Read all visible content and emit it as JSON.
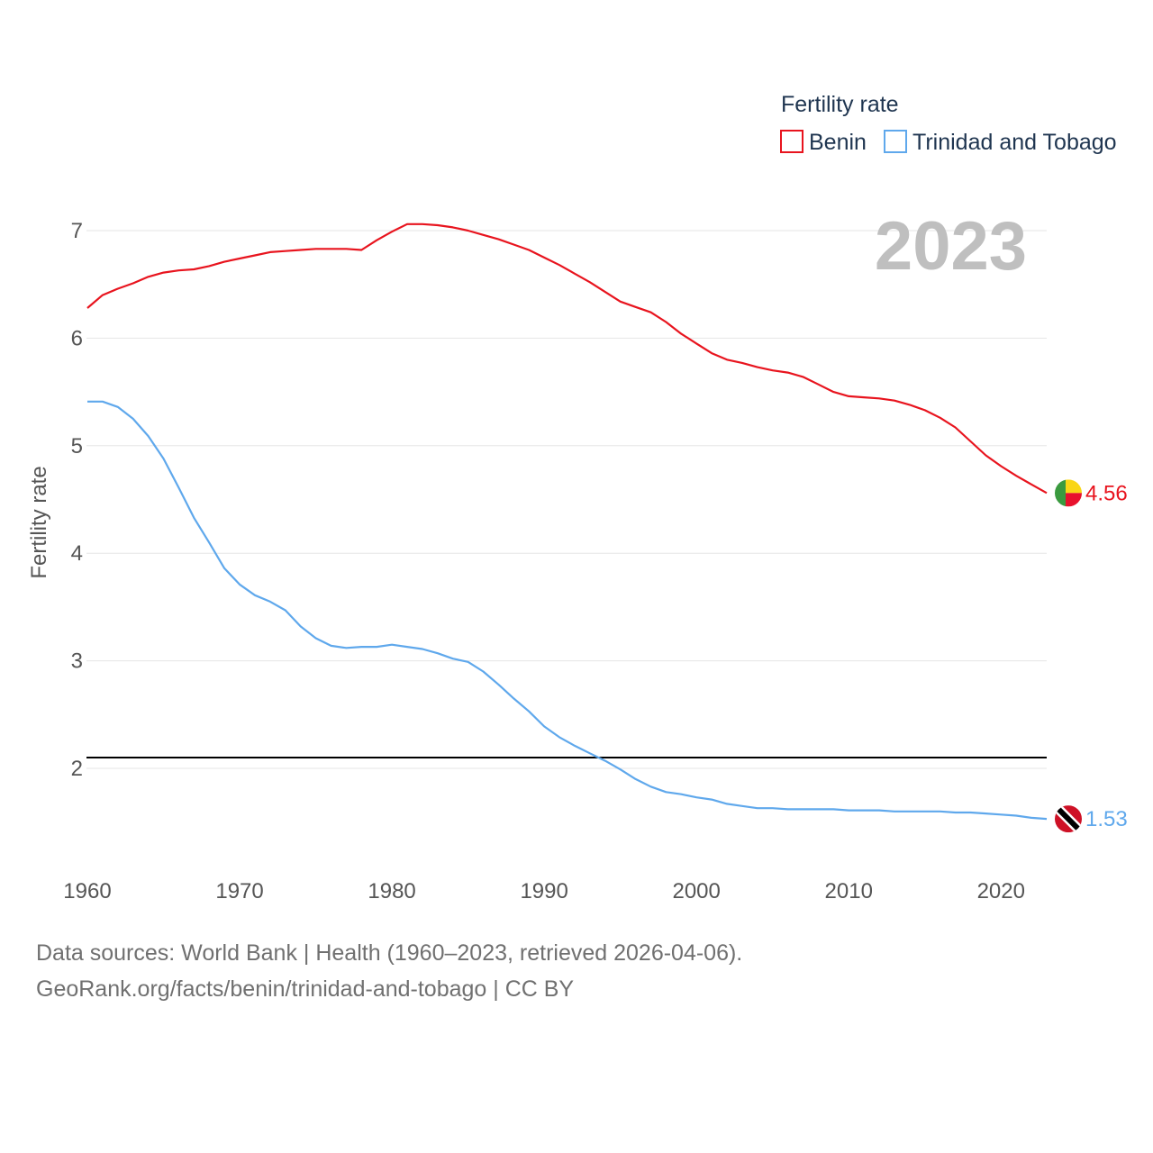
{
  "chart_data": {
    "type": "line",
    "title": "",
    "legend": {
      "title": "Fertility rate",
      "position": "top-right"
    },
    "ylabel": "Fertility rate",
    "xlabel": "",
    "xlim": [
      1960,
      2023
    ],
    "ylim": [
      1.1,
      7.3
    ],
    "x_ticks": [
      1960,
      1970,
      1980,
      1990,
      2000,
      2010,
      2020
    ],
    "y_ticks": [
      2,
      3,
      4,
      5,
      6,
      7
    ],
    "year_label": "2023",
    "reference_line": {
      "value": 2.1,
      "color": "#000000"
    },
    "x": [
      1960,
      1961,
      1962,
      1963,
      1964,
      1965,
      1966,
      1967,
      1968,
      1969,
      1970,
      1971,
      1972,
      1973,
      1974,
      1975,
      1976,
      1977,
      1978,
      1979,
      1980,
      1981,
      1982,
      1983,
      1984,
      1985,
      1986,
      1987,
      1988,
      1989,
      1990,
      1991,
      1992,
      1993,
      1994,
      1995,
      1996,
      1997,
      1998,
      1999,
      2000,
      2001,
      2002,
      2003,
      2004,
      2005,
      2006,
      2007,
      2008,
      2009,
      2010,
      2011,
      2012,
      2013,
      2014,
      2015,
      2016,
      2017,
      2018,
      2019,
      2020,
      2021,
      2022,
      2023
    ],
    "series": [
      {
        "name": "Benin",
        "color": "#e8141e",
        "end_label": "4.56",
        "values": [
          6.28,
          6.4,
          6.46,
          6.51,
          6.57,
          6.61,
          6.63,
          6.64,
          6.67,
          6.71,
          6.74,
          6.77,
          6.8,
          6.81,
          6.82,
          6.83,
          6.83,
          6.83,
          6.82,
          6.91,
          6.99,
          7.06,
          7.06,
          7.05,
          7.03,
          7.0,
          6.96,
          6.92,
          6.87,
          6.82,
          6.75,
          6.68,
          6.6,
          6.52,
          6.43,
          6.34,
          6.29,
          6.24,
          6.15,
          6.04,
          5.95,
          5.86,
          5.8,
          5.77,
          5.73,
          5.7,
          5.68,
          5.64,
          5.57,
          5.5,
          5.46,
          5.45,
          5.44,
          5.42,
          5.38,
          5.33,
          5.26,
          5.17,
          5.04,
          4.91,
          4.81,
          4.72,
          4.64,
          4.56
        ]
      },
      {
        "name": "Trinidad and Tobago",
        "color": "#5fa8ec",
        "end_label": "1.53",
        "values": [
          5.41,
          5.41,
          5.36,
          5.25,
          5.09,
          4.88,
          4.61,
          4.33,
          4.1,
          3.86,
          3.71,
          3.61,
          3.55,
          3.47,
          3.32,
          3.21,
          3.14,
          3.12,
          3.13,
          3.13,
          3.15,
          3.13,
          3.11,
          3.07,
          3.02,
          2.99,
          2.9,
          2.78,
          2.65,
          2.53,
          2.39,
          2.29,
          2.21,
          2.14,
          2.07,
          1.99,
          1.9,
          1.83,
          1.78,
          1.76,
          1.73,
          1.71,
          1.67,
          1.65,
          1.63,
          1.63,
          1.62,
          1.62,
          1.62,
          1.62,
          1.61,
          1.61,
          1.61,
          1.6,
          1.6,
          1.6,
          1.6,
          1.59,
          1.59,
          1.58,
          1.57,
          1.56,
          1.54,
          1.53
        ]
      }
    ]
  },
  "flags": {
    "benin": {
      "name": "benin-flag-icon",
      "colors": [
        "#3a9a3f",
        "#f9d616",
        "#e8112d"
      ]
    },
    "trinidad": {
      "name": "trinidad-flag-icon",
      "colors": [
        "#ce1126",
        "#ffffff",
        "#000000"
      ]
    }
  },
  "footer": {
    "line1": "Data sources: World Bank | Health (1960–2023, retrieved 2026-04-06).",
    "line2": "GeoRank.org/facts/benin/trinidad-and-tobago | CC BY"
  }
}
